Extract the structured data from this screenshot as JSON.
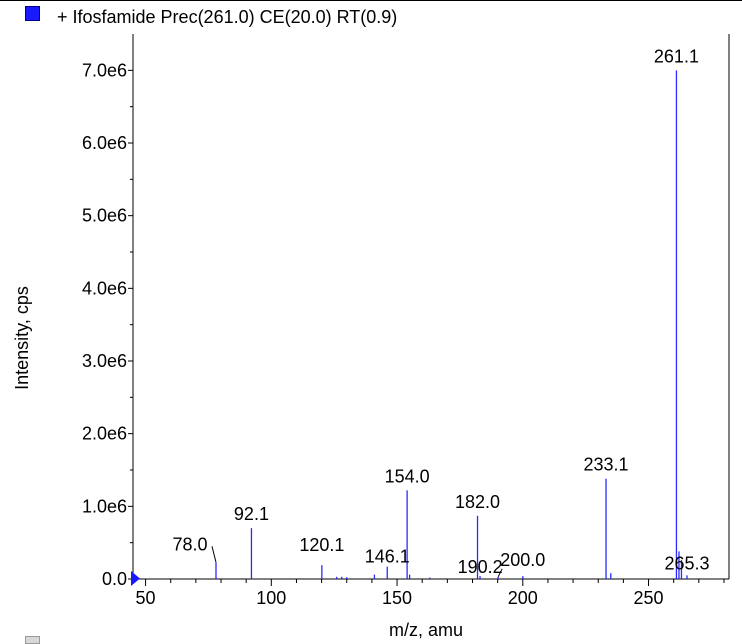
{
  "legend": {
    "label": "+ Ifosfamide Prec(261.0) CE(20.0) RT(0.9)",
    "color": "#1a1aff"
  },
  "chart_data": {
    "type": "bar",
    "xlabel": "m/z, amu",
    "ylabel": "Intensity, cps",
    "xlim": [
      45,
      282
    ],
    "ylim": [
      0,
      7500000
    ],
    "xticks": [
      50,
      100,
      150,
      200,
      250
    ],
    "yticks": [
      0,
      1000000,
      2000000,
      3000000,
      4000000,
      5000000,
      6000000,
      7000000
    ],
    "ytick_labels": [
      "0.0",
      "1.0e6",
      "2.0e6",
      "3.0e6",
      "4.0e6",
      "5.0e6",
      "6.0e6",
      "7.0e6"
    ],
    "peak_color": "#2a2aff",
    "peaks": [
      {
        "mz": 78.0,
        "intensity": 230000,
        "label": "78.0"
      },
      {
        "mz": 92.1,
        "intensity": 700000,
        "label": "92.1"
      },
      {
        "mz": 120.1,
        "intensity": 190000,
        "label": "120.1"
      },
      {
        "mz": 126.0,
        "intensity": 30000
      },
      {
        "mz": 128.0,
        "intensity": 30000
      },
      {
        "mz": 130.0,
        "intensity": 25000
      },
      {
        "mz": 141.0,
        "intensity": 60000
      },
      {
        "mz": 146.1,
        "intensity": 170000,
        "label": "146.1"
      },
      {
        "mz": 154.0,
        "intensity": 1220000,
        "label": "154.0"
      },
      {
        "mz": 155.0,
        "intensity": 60000
      },
      {
        "mz": 163.0,
        "intensity": 20000
      },
      {
        "mz": 182.0,
        "intensity": 870000,
        "label": "182.0"
      },
      {
        "mz": 183.0,
        "intensity": 40000
      },
      {
        "mz": 190.2,
        "intensity": 30000,
        "label": "190.2"
      },
      {
        "mz": 200.0,
        "intensity": 40000,
        "label": "200.0"
      },
      {
        "mz": 233.1,
        "intensity": 1380000,
        "label": "233.1"
      },
      {
        "mz": 235.0,
        "intensity": 80000
      },
      {
        "mz": 261.1,
        "intensity": 7000000,
        "label": "261.1"
      },
      {
        "mz": 262.1,
        "intensity": 380000
      },
      {
        "mz": 263.1,
        "intensity": 260000
      },
      {
        "mz": 265.3,
        "intensity": 50000,
        "label": "265.3"
      }
    ]
  }
}
